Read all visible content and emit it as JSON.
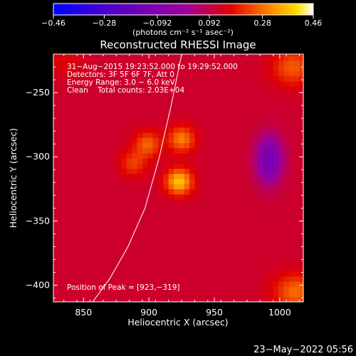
{
  "chart_data": {
    "type": "heatmap",
    "title": "Reconstructed RHESSI Image",
    "xlabel": "Heliocentric X (arcsec)",
    "ylabel": "Heliocentric Y (arcsec)",
    "xlim": [
      827,
      1018
    ],
    "ylim": [
      -413,
      -220
    ],
    "x_ticks": [
      850,
      900,
      950,
      1000
    ],
    "y_ticks": [
      -250,
      -300,
      -350,
      -400
    ],
    "x_tick_labels": [
      "850",
      "900",
      "950",
      "1000"
    ],
    "y_tick_labels": [
      "−250",
      "−300",
      "−350",
      "−400"
    ],
    "colorbar": {
      "min": -0.46,
      "max": 0.46,
      "ticks": [
        -0.46,
        -0.28,
        -0.092,
        0.092,
        0.28,
        0.46
      ],
      "tick_labels": [
        "−0.46",
        "−0.28",
        "−0.092",
        "0.092",
        "0.28",
        "0.46"
      ],
      "unit_label": "(photons cm⁻² s⁻¹ asec⁻²)",
      "colormap": "blue-purple-red-yellow-white"
    },
    "annotations": [
      "31−Aug−2015 19:23:52.000 to 19:29:52.000",
      "Detectors: 3F 5F 6F 7F, Att 0",
      "Energy Range: 3.0 − 6.0 keV",
      "Clean    Total counts: 2.03E+04"
    ],
    "peak_label": "Position of Peak = [923,−319]",
    "peak": [
      923,
      -319
    ],
    "limb_curve": [
      [
        857,
        -413
      ],
      [
        870,
        -395
      ],
      [
        884,
        -370
      ],
      [
        897,
        -340
      ],
      [
        908,
        -300
      ],
      [
        917,
        -260
      ],
      [
        925,
        -220
      ]
    ],
    "image_levels": {
      "background": 0.12,
      "sources": [
        {
          "x": 923,
          "y": -319,
          "peak": 0.46
        },
        {
          "x": 925,
          "y": -286,
          "peak": 0.38
        },
        {
          "x": 899,
          "y": -290,
          "peak": 0.35
        },
        {
          "x": 888,
          "y": -305,
          "peak": 0.31
        }
      ],
      "negative": [
        {
          "x": 992,
          "y": -302,
          "peak": -0.12
        }
      ],
      "corner_hot": [
        {
          "x": 1010,
          "y": -230,
          "peak": 0.24
        },
        {
          "x": 1012,
          "y": -405,
          "peak": 0.26
        },
        {
          "x": 835,
          "y": -225,
          "peak": 0.14
        }
      ]
    }
  },
  "footer_date": "23−May−2022 05:56"
}
